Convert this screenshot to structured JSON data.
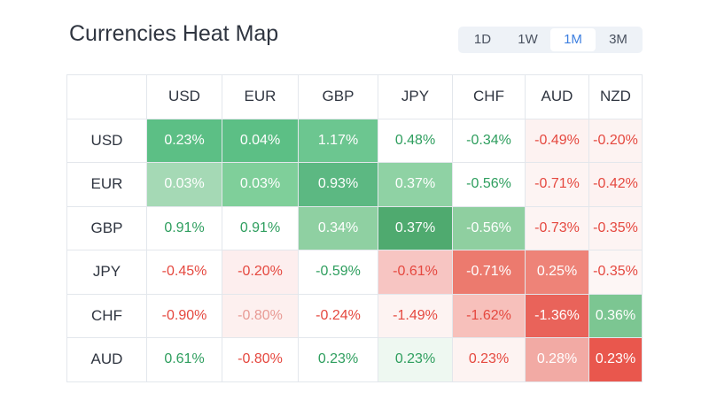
{
  "title": "Currencies Heat Map",
  "periods": [
    "1D",
    "1W",
    "1M",
    "3M"
  ],
  "active_period": "1M",
  "colors": {
    "green_text": "#2e9e5e",
    "red_text": "#e5483f",
    "white_text": "#ffffff",
    "accent": "#3d7fe0"
  },
  "columns": [
    "USD",
    "EUR",
    "GBP",
    "JPY",
    "CHF",
    "AUD",
    "NZD"
  ],
  "rows": [
    {
      "label": "USD",
      "cells": [
        {
          "v": "0.23%",
          "bg": "#5cbf85",
          "fg": "#ffffff"
        },
        {
          "v": "0.04%",
          "bg": "#5cbf85",
          "fg": "#ffffff"
        },
        {
          "v": "1.17%",
          "bg": "#6cc690",
          "fg": "#ffffff"
        },
        {
          "v": "0.48%",
          "bg": "#ffffff",
          "fg": "#2e9e5e"
        },
        {
          "v": "-0.34%",
          "bg": "#ffffff",
          "fg": "#2e9e5e"
        },
        {
          "v": "-0.49%",
          "bg": "#fdf2f1",
          "fg": "#e5483f"
        },
        {
          "v": "-0.20%",
          "bg": "#fdf3f2",
          "fg": "#e5483f"
        }
      ]
    },
    {
      "label": "EUR",
      "cells": [
        {
          "v": "0.03%",
          "bg": "#a5d9b5",
          "fg": "#ffffff"
        },
        {
          "v": "0.03%",
          "bg": "#7fcf9a",
          "fg": "#ffffff"
        },
        {
          "v": "0.93%",
          "bg": "#5cb882",
          "fg": "#ffffff"
        },
        {
          "v": "0.37%",
          "bg": "#8fd2a4",
          "fg": "#ffffff"
        },
        {
          "v": "-0.56%",
          "bg": "#ffffff",
          "fg": "#2e9e5e"
        },
        {
          "v": "-0.71%",
          "bg": "#fdf4f3",
          "fg": "#e5483f"
        },
        {
          "v": "-0.42%",
          "bg": "#fdf2f1",
          "fg": "#e5483f"
        }
      ]
    },
    {
      "label": "GBP",
      "cells": [
        {
          "v": "0.91%",
          "bg": "#ffffff",
          "fg": "#2e9e5e"
        },
        {
          "v": "0.91%",
          "bg": "#ffffff",
          "fg": "#2e9e5e"
        },
        {
          "v": "0.34%",
          "bg": "#8fd0a2",
          "fg": "#ffffff"
        },
        {
          "v": "0.37%",
          "bg": "#4faa6f",
          "fg": "#ffffff"
        },
        {
          "v": "-0.56%",
          "bg": "#8fcfa0",
          "fg": "#ffffff"
        },
        {
          "v": "-0.73%",
          "bg": "#fdf4f3",
          "fg": "#e5483f"
        },
        {
          "v": "-0.35%",
          "bg": "#fdf4f3",
          "fg": "#e5483f"
        }
      ]
    },
    {
      "label": "JPY",
      "cells": [
        {
          "v": "-0.45%",
          "bg": "#ffffff",
          "fg": "#e5483f"
        },
        {
          "v": "-0.20%",
          "bg": "#fdeeee",
          "fg": "#e5483f"
        },
        {
          "v": "-0.59%",
          "bg": "#ffffff",
          "fg": "#2e9e5e"
        },
        {
          "v": "-0.61%",
          "bg": "#f7c5c2",
          "fg": "#e5483f"
        },
        {
          "v": "-0.71%",
          "bg": "#ec7a6e",
          "fg": "#ffffff"
        },
        {
          "v": "0.25%",
          "bg": "#ee8378",
          "fg": "#ffffff"
        },
        {
          "v": "-0.35%",
          "bg": "#fdf6f5",
          "fg": "#e5483f"
        }
      ]
    },
    {
      "label": "CHF",
      "cells": [
        {
          "v": "-0.90%",
          "bg": "#ffffff",
          "fg": "#e5483f"
        },
        {
          "v": "-0.80%",
          "bg": "#fdf0ef",
          "fg": "#e89a94"
        },
        {
          "v": "-0.24%",
          "bg": "#ffffff",
          "fg": "#e5483f"
        },
        {
          "v": "-1.49%",
          "bg": "#fdf3f2",
          "fg": "#e5483f"
        },
        {
          "v": "-1.62%",
          "bg": "#f7c0bb",
          "fg": "#e5483f"
        },
        {
          "v": "-1.36%",
          "bg": "#e9635a",
          "fg": "#ffffff"
        },
        {
          "v": "0.36%",
          "bg": "#7cc692",
          "fg": "#ffffff"
        }
      ]
    },
    {
      "label": "AUD",
      "cells": [
        {
          "v": "0.61%",
          "bg": "#ffffff",
          "fg": "#2e9e5e"
        },
        {
          "v": "-0.80%",
          "bg": "#ffffff",
          "fg": "#e5483f"
        },
        {
          "v": "0.23%",
          "bg": "#ffffff",
          "fg": "#2e9e5e"
        },
        {
          "v": "0.23%",
          "bg": "#eef8f1",
          "fg": "#2e9e5e"
        },
        {
          "v": "0.23%",
          "bg": "#fdf3f2",
          "fg": "#e5483f"
        },
        {
          "v": "0.28%",
          "bg": "#f2aaa4",
          "fg": "#ffffff"
        },
        {
          "v": "0.23%",
          "bg": "#e9574d",
          "fg": "#ffffff"
        }
      ]
    }
  ]
}
